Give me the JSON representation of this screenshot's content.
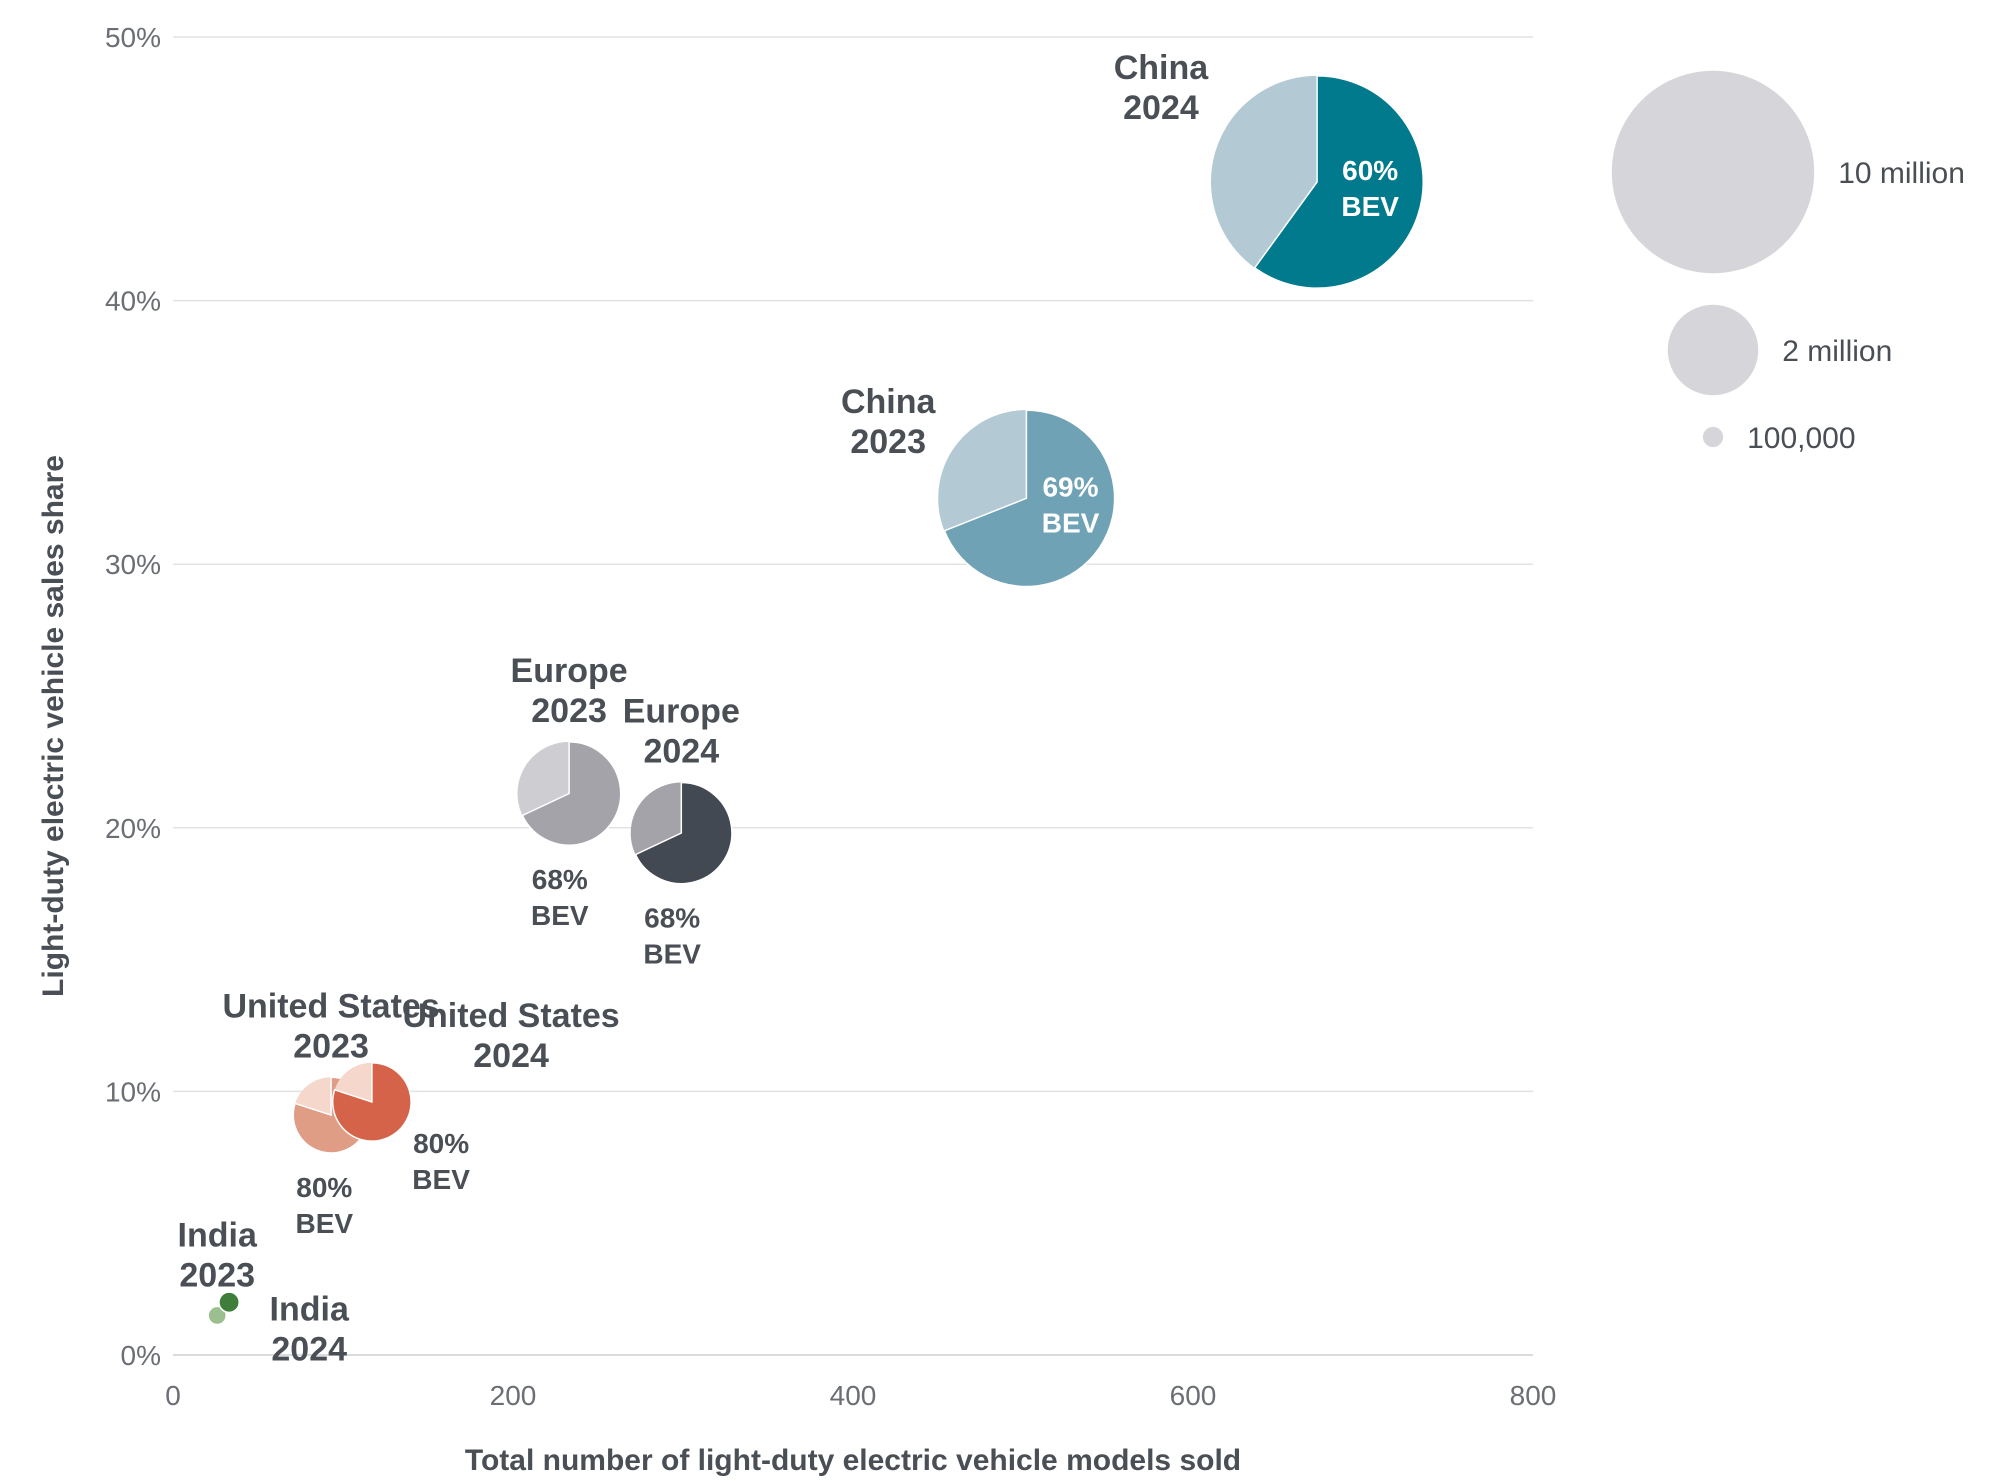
{
  "chart_data": {
    "type": "scatter",
    "xlabel": "Total number of light-duty electric vehicle models sold",
    "ylabel": "Light-duty electric vehicle sales share",
    "xlim": [
      0,
      800
    ],
    "ylim": [
      0,
      50
    ],
    "x_ticks": [
      "0",
      "200",
      "400",
      "600",
      "800"
    ],
    "y_ticks": [
      "0%",
      "10%",
      "20%",
      "30%",
      "40%",
      "50%"
    ],
    "grid": "horizontal",
    "bubble_size_note": "bubble area proportional to electric vehicle sales volume; pie wedge shows BEV share",
    "series": [
      {
        "name_line1": "China",
        "name_line2": "2024",
        "x": 673,
        "y": 44.5,
        "sales_millions": 11.0,
        "bev_pct": 60,
        "bev_line1": "60%",
        "bev_line2": "BEV",
        "color_bev": "#007a8c",
        "color_rest": "#b3c9d4",
        "label_pos": "upper-left",
        "bev_pos": "inside"
      },
      {
        "name_line1": "China",
        "name_line2": "2023",
        "x": 502,
        "y": 32.5,
        "sales_millions": 7.6,
        "bev_pct": 69,
        "bev_line1": "69%",
        "bev_line2": "BEV",
        "color_bev": "#6fa2b5",
        "color_rest": "#b3c9d4",
        "label_pos": "upper-left",
        "bev_pos": "inside"
      },
      {
        "name_line1": "Europe",
        "name_line2": "2023",
        "x": 233,
        "y": 21.3,
        "sales_millions": 2.6,
        "bev_pct": 68,
        "bev_line1": "68%",
        "bev_line2": "BEV",
        "color_bev": "#a3a3a9",
        "color_rest": "#cdcdd2",
        "label_pos": "above",
        "bev_pos": "below"
      },
      {
        "name_line1": "Europe",
        "name_line2": "2024",
        "x": 299,
        "y": 19.8,
        "sales_millions": 2.5,
        "bev_pct": 68,
        "bev_line1": "68%",
        "bev_line2": "BEV",
        "color_bev": "#424952",
        "color_rest": "#a3a3a9",
        "label_pos": "above",
        "bev_pos": "below"
      },
      {
        "name_line1": "United States",
        "name_line2": "2023",
        "x": 93,
        "y": 9.1,
        "sales_millions": 1.4,
        "bev_pct": 80,
        "bev_line1": "80%",
        "bev_line2": "BEV",
        "color_bev": "#e09d86",
        "color_rest": "#f5d7cb",
        "label_pos": "above",
        "bev_pos": "below"
      },
      {
        "name_line1": "United States",
        "name_line2": "2024",
        "x": 117,
        "y": 9.6,
        "sales_millions": 1.5,
        "bev_pct": 80,
        "bev_line1": "80%",
        "bev_line2": "BEV",
        "color_bev": "#d4634a",
        "color_rest": "#f5d7cb",
        "label_pos": "upper-right",
        "bev_pos": "lower-right"
      },
      {
        "name_line1": "India",
        "name_line2": "2023",
        "x": 26,
        "y": 1.5,
        "sales_millions": 0.08,
        "bev_pct": null,
        "bev_line1": "",
        "bev_line2": "",
        "color_bev": "#9bbf8f",
        "color_rest": "#9bbf8f",
        "label_pos": "above",
        "bev_pos": "none"
      },
      {
        "name_line1": "India",
        "name_line2": "2024",
        "x": 33,
        "y": 2.0,
        "sales_millions": 0.1,
        "bev_pct": null,
        "bev_line1": "",
        "bev_line2": "",
        "color_bev": "#3f7d3a",
        "color_rest": "#3f7d3a",
        "label_pos": "lower-right",
        "bev_pos": "none"
      }
    ],
    "legend": {
      "placement": "top-right",
      "items": [
        {
          "label": "10 million",
          "value_millions": 10
        },
        {
          "label": "2 million",
          "value_millions": 2
        },
        {
          "label": "100,000",
          "value_millions": 0.1
        }
      ],
      "color": "#d6d6da"
    }
  }
}
